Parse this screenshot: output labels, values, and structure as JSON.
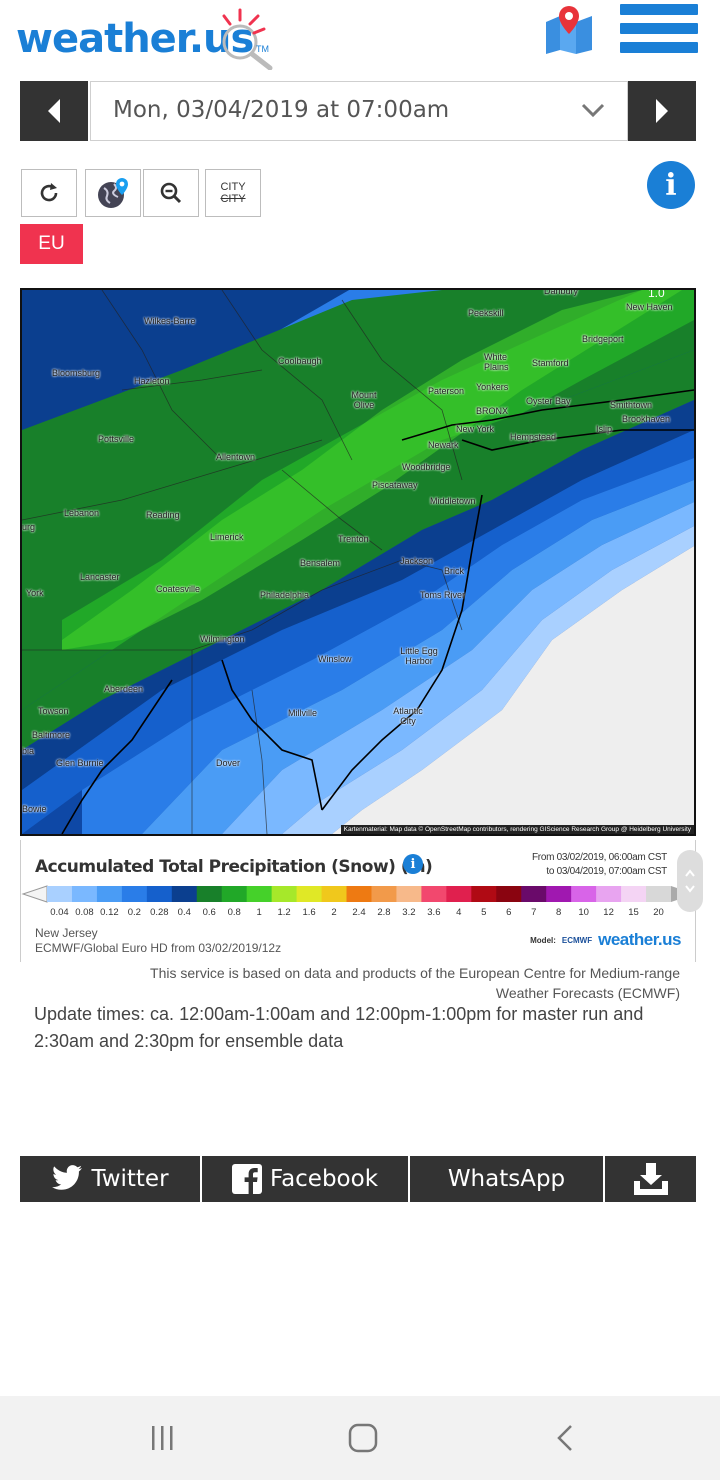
{
  "header": {
    "logo_text": "weather.us",
    "logo_tm": "TM",
    "map_icon": "map-pin-icon",
    "menu_icon": "hamburger-icon"
  },
  "date_selector": {
    "value": "Mon, 03/04/2019 at 07:00am"
  },
  "toolbar": {
    "refresh_icon": "refresh-icon",
    "globe_icon": "globe-location-icon",
    "zoom_icon": "zoom-out-icon",
    "city_label_top": "CITY",
    "city_label_bottom": "CITY",
    "info_icon": "info-icon",
    "region_button": "EU"
  },
  "map": {
    "attribution": "Kartenmaterial: Map data © OpenStreetMap contributors, rendering GIScience Research Group @ Heidelberg University",
    "corner_value": "1.0",
    "cities": [
      "Danbury",
      "Wilkes-Barre",
      "Peekskill",
      "New Haven",
      "Bridgeport",
      "Coolbaugh",
      "White Plains",
      "Stamford",
      "Bloomsburg",
      "Hazleton",
      "Mount Olive",
      "Paterson",
      "Yonkers",
      "BRONX",
      "Oyster Bay",
      "Smithtown",
      "Brookhaven",
      "New York",
      "Hempstead",
      "Islip",
      "Newark",
      "Pottsville",
      "Allentown",
      "Woodbridge",
      "Piscataway",
      "Middletown",
      "Lebanon",
      "Reading",
      "Limerick",
      "Trenton",
      "Lancaster",
      "Coatesville",
      "Bensalem",
      "Jackson",
      "Brick",
      "York",
      "Philadelphia",
      "Toms River",
      "Wilmington",
      "Winslow",
      "Little Egg Harbor",
      "Aberdeen",
      "Towson",
      "Millville",
      "Atlantic City",
      "Baltimore",
      "Glen Burnie",
      "Dover",
      "Bowie",
      "urg",
      "bia"
    ]
  },
  "legend": {
    "title": "Accumulated Total Precipitation (Snow) (in)",
    "range_from": "From 03/02/2019, 06:00am CST",
    "range_to": "to 03/04/2019, 07:00am CST",
    "ticks": [
      "0.04",
      "0.08",
      "0.12",
      "0.2",
      "0.28",
      "0.4",
      "0.6",
      "0.8",
      "1",
      "1.2",
      "1.6",
      "2",
      "2.4",
      "2.8",
      "3.2",
      "3.6",
      "4",
      "5",
      "6",
      "7",
      "8",
      "10",
      "12",
      "15",
      "20"
    ],
    "colors": [
      "#a9d0ff",
      "#7ab8ff",
      "#4a9cf5",
      "#2a7de8",
      "#1560cc",
      "#0b3f8f",
      "#18802a",
      "#21a828",
      "#45d12a",
      "#a6e82a",
      "#e0e826",
      "#f0c81c",
      "#ee7a12",
      "#f29a4a",
      "#f7b98a",
      "#f2486e",
      "#e0204e",
      "#b00a14",
      "#8a0410",
      "#6a0a6a",
      "#a018b0",
      "#d864e8",
      "#e8a4f0",
      "#f4d4f4",
      "#d8d8d8"
    ],
    "region": "New Jersey",
    "model_run": "ECMWF/Global Euro HD from 03/02/2019/12z",
    "model_label": "Model:",
    "model_org": "ECMWF",
    "brand": "weather.us"
  },
  "notes": {
    "ecmwf_line1": "This service is based on data and products of the European Centre for Medium-range",
    "ecmwf_line2": "Weather Forecasts (ECMWF)",
    "update_times": "Update times: ca. 12:00am-1:00am and 12:00pm-1:00pm for master run and 2:30am and 2:30pm for ensemble data"
  },
  "share": {
    "twitter": "Twitter",
    "facebook": "Facebook",
    "whatsapp": "WhatsApp",
    "download_icon": "download-icon"
  },
  "android_nav": {
    "recents_icon": "recents-icon",
    "home_icon": "home-icon",
    "back_icon": "back-icon"
  }
}
